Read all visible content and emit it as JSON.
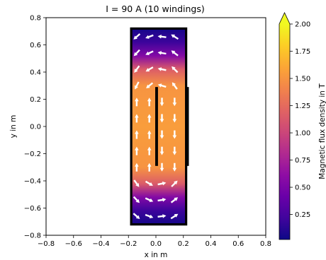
{
  "chart_data": {
    "type": "heatmap",
    "title": "I = 90 A (10 windings)",
    "xlabel": "x in m",
    "ylabel": "y in m",
    "xlim": [
      -0.8,
      0.8
    ],
    "ylim": [
      -0.8,
      0.8
    ],
    "x_ticks": [
      "−0.8",
      "−0.6",
      "−0.4",
      "−0.2",
      "0.0",
      "0.2",
      "0.4",
      "0.6",
      "0.8"
    ],
    "y_ticks": [
      "−0.8",
      "−0.6",
      "−0.4",
      "−0.2",
      "0.0",
      "0.2",
      "0.4",
      "0.6",
      "0.8"
    ],
    "colorbar": {
      "label": "Magnetic flux density in T",
      "colormap": "plasma",
      "range": [
        0.02,
        2.0
      ],
      "extend": "max",
      "ticks": [
        "0.25",
        "0.50",
        "0.75",
        "1.00",
        "1.25",
        "1.50",
        "1.75",
        "2.00"
      ]
    },
    "field_region": {
      "x": [
        -0.18,
        0.22
      ],
      "y": [
        -0.72,
        0.72
      ]
    },
    "flux_density_profile_T": [
      {
        "y": 0.72,
        "B": 0.05
      },
      {
        "y": 0.62,
        "B": 0.2
      },
      {
        "y": 0.52,
        "B": 0.55
      },
      {
        "y": 0.42,
        "B": 1.15
      },
      {
        "y": 0.3,
        "B": 1.5
      },
      {
        "y": 0.0,
        "B": 1.55
      },
      {
        "y": -0.3,
        "B": 1.5
      },
      {
        "y": -0.42,
        "B": 1.15
      },
      {
        "y": -0.52,
        "B": 0.55
      },
      {
        "y": -0.62,
        "B": 0.2
      },
      {
        "y": -0.72,
        "B": 0.05
      }
    ],
    "conductors": [
      {
        "name": "yoke",
        "x": [
          -0.18,
          0.22
        ],
        "y": [
          -0.72,
          0.72
        ]
      },
      {
        "name": "inner-coil",
        "x": [
          -0.005,
          0.015
        ],
        "y": [
          -0.29,
          0.29
        ]
      },
      {
        "name": "outer-coil",
        "x": [
          0.22,
          0.24
        ],
        "y": [
          -0.29,
          0.29
        ]
      }
    ]
  }
}
